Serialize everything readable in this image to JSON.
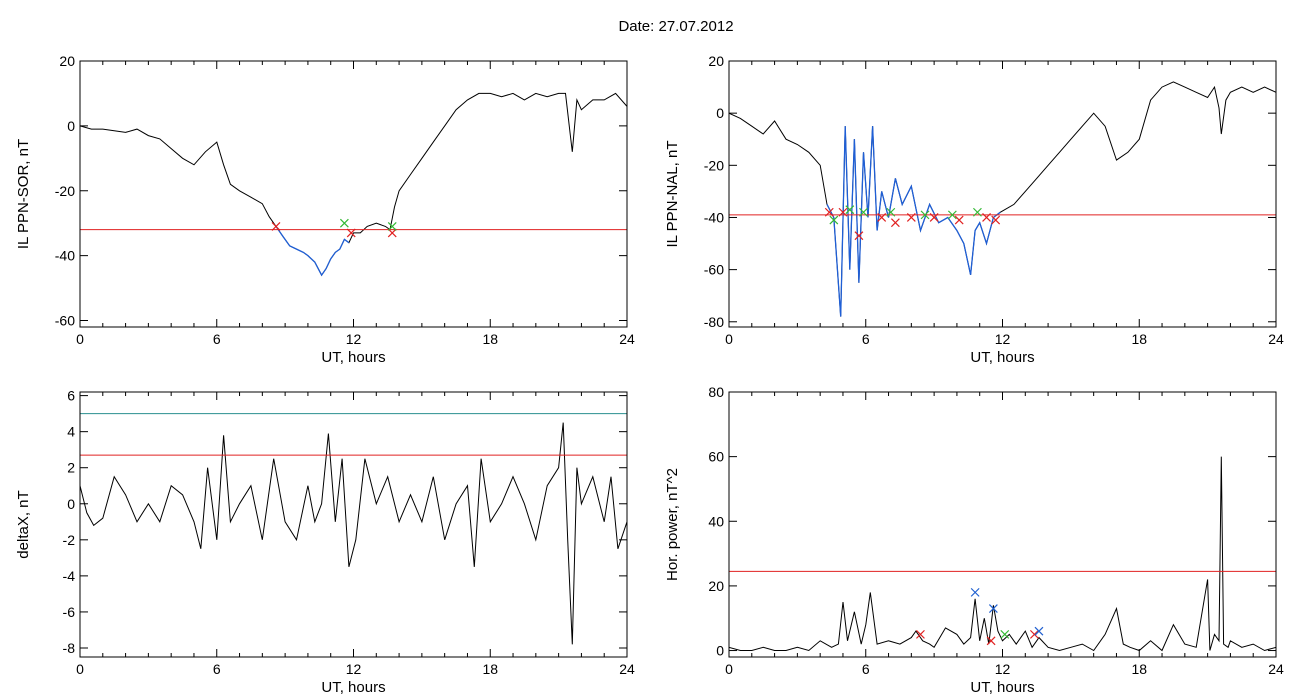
{
  "header": {
    "date_label": "Date:  27.07.2012"
  },
  "colors": {
    "axis": "#000000",
    "series": "#000000",
    "highlight": "#1f5fd6",
    "threshold": "#e02020",
    "threshold2": "#2a8f8f",
    "marker_red": "#e02020",
    "marker_green": "#33b833",
    "marker_blue": "#2060d0"
  },
  "chart_data": [
    {
      "id": "ppn-sor",
      "type": "line",
      "title": "",
      "xlabel": "UT, hours",
      "ylabel": "IL PPN-SOR, nT",
      "xlim": [
        0,
        24
      ],
      "ylim": [
        -62,
        20
      ],
      "xticks": [
        0,
        6,
        12,
        18,
        24
      ],
      "yticks": [
        -60,
        -40,
        -20,
        0,
        20
      ],
      "threshold": -32,
      "highlight_range": [
        8.6,
        11.9
      ],
      "series": [
        {
          "x": [
            0,
            0.5,
            1,
            1.5,
            2,
            2.5,
            3,
            3.5,
            4,
            4.5,
            5,
            5.5,
            6,
            6.3,
            6.6,
            7,
            7.5,
            8,
            8.3,
            8.6,
            8.9,
            9.2,
            9.5,
            9.8,
            10,
            10.3,
            10.6,
            10.8,
            11,
            11.2,
            11.4,
            11.6,
            11.8,
            12,
            12.3,
            12.6,
            13,
            13.4,
            13.6,
            13.8,
            14,
            14.5,
            15,
            15.5,
            16,
            16.5,
            17,
            17.5,
            18,
            18.5,
            19,
            19.5,
            20,
            20.5,
            21,
            21.3,
            21.5,
            21.6,
            21.8,
            22,
            22.5,
            23,
            23.5,
            24
          ],
          "y": [
            0,
            -1,
            -1,
            -1.5,
            -2,
            -1,
            -3,
            -4,
            -7,
            -10,
            -12,
            -8,
            -5,
            -12,
            -18,
            -20,
            -22,
            -24,
            -28,
            -31,
            -34,
            -37,
            -38,
            -39,
            -40,
            -42,
            -46,
            -44,
            -41,
            -39,
            -38,
            -35,
            -36,
            -33,
            -33,
            -31,
            -30,
            -31,
            -32,
            -25,
            -20,
            -15,
            -10,
            -5,
            0,
            5,
            8,
            10,
            10,
            9,
            10,
            8,
            10,
            9,
            10,
            10,
            -2,
            -8,
            8,
            5,
            8,
            8,
            10,
            6
          ]
        }
      ],
      "markers": [
        {
          "x": 8.6,
          "y": -31,
          "color": "red"
        },
        {
          "x": 11.6,
          "y": -30,
          "color": "green"
        },
        {
          "x": 11.9,
          "y": -33,
          "color": "red"
        },
        {
          "x": 13.7,
          "y": -33,
          "color": "red"
        },
        {
          "x": 13.7,
          "y": -31,
          "color": "green"
        }
      ]
    },
    {
      "id": "ppn-nal",
      "type": "line",
      "title": "",
      "xlabel": "UT, hours",
      "ylabel": "IL PPN-NAL, nT",
      "xlim": [
        0,
        24
      ],
      "ylim": [
        -82,
        20
      ],
      "xticks": [
        0,
        6,
        12,
        18,
        24
      ],
      "yticks": [
        -80,
        -60,
        -40,
        -20,
        0,
        20
      ],
      "threshold": -39,
      "highlight_range": [
        4.3,
        11.9
      ],
      "series": [
        {
          "x": [
            0,
            0.5,
            1,
            1.5,
            2,
            2.5,
            3,
            3.5,
            4,
            4.3,
            4.6,
            4.9,
            5.1,
            5.3,
            5.5,
            5.7,
            5.9,
            6.1,
            6.3,
            6.5,
            6.7,
            7,
            7.3,
            7.6,
            8,
            8.4,
            8.8,
            9.2,
            9.6,
            10,
            10.3,
            10.6,
            10.8,
            11,
            11.3,
            11.6,
            11.9,
            12.5,
            13,
            13.5,
            14,
            14.5,
            15,
            15.5,
            16,
            16.5,
            17,
            17.5,
            18,
            18.5,
            19,
            19.5,
            20,
            20.5,
            21,
            21.3,
            21.5,
            21.6,
            21.8,
            22,
            22.5,
            23,
            23.5,
            24
          ],
          "y": [
            0,
            -2,
            -5,
            -8,
            -3,
            -10,
            -12,
            -15,
            -20,
            -35,
            -40,
            -78,
            -5,
            -60,
            -10,
            -65,
            -15,
            -40,
            -5,
            -45,
            -30,
            -40,
            -25,
            -35,
            -28,
            -45,
            -35,
            -42,
            -40,
            -45,
            -50,
            -62,
            -45,
            -42,
            -50,
            -40,
            -38,
            -35,
            -30,
            -25,
            -20,
            -15,
            -10,
            -5,
            0,
            -5,
            -18,
            -15,
            -10,
            5,
            10,
            12,
            10,
            8,
            6,
            10,
            2,
            -8,
            5,
            8,
            10,
            8,
            10,
            8
          ]
        }
      ],
      "markers": [
        {
          "x": 4.4,
          "y": -38,
          "color": "red"
        },
        {
          "x": 4.6,
          "y": -41,
          "color": "green"
        },
        {
          "x": 5.0,
          "y": -38,
          "color": "red"
        },
        {
          "x": 5.3,
          "y": -37,
          "color": "green"
        },
        {
          "x": 5.7,
          "y": -47,
          "color": "red"
        },
        {
          "x": 5.9,
          "y": -38,
          "color": "green"
        },
        {
          "x": 6.7,
          "y": -40,
          "color": "red"
        },
        {
          "x": 7.1,
          "y": -38,
          "color": "green"
        },
        {
          "x": 7.3,
          "y": -42,
          "color": "red"
        },
        {
          "x": 8.0,
          "y": -40,
          "color": "red"
        },
        {
          "x": 8.6,
          "y": -39,
          "color": "green"
        },
        {
          "x": 9.0,
          "y": -40,
          "color": "red"
        },
        {
          "x": 9.8,
          "y": -39,
          "color": "green"
        },
        {
          "x": 10.1,
          "y": -41,
          "color": "red"
        },
        {
          "x": 10.9,
          "y": -38,
          "color": "green"
        },
        {
          "x": 11.3,
          "y": -40,
          "color": "red"
        },
        {
          "x": 11.7,
          "y": -41,
          "color": "red"
        }
      ]
    },
    {
      "id": "deltax",
      "type": "line",
      "title": "",
      "xlabel": "UT, hours",
      "ylabel": "deltaX, nT",
      "xlim": [
        0,
        24
      ],
      "ylim": [
        -8.5,
        6.2
      ],
      "xticks": [
        0,
        6,
        12,
        18,
        24
      ],
      "yticks": [
        -8,
        -6,
        -4,
        -2,
        0,
        2,
        4,
        6
      ],
      "threshold": 2.7,
      "threshold2": 5.0,
      "series": [
        {
          "x": [
            0,
            0.3,
            0.6,
            1,
            1.5,
            2,
            2.5,
            3,
            3.5,
            4,
            4.5,
            5,
            5.3,
            5.6,
            6,
            6.3,
            6.6,
            7,
            7.5,
            8,
            8.5,
            9,
            9.5,
            10,
            10.3,
            10.6,
            10.9,
            11.2,
            11.5,
            11.8,
            12.1,
            12.5,
            13,
            13.5,
            14,
            14.5,
            15,
            15.5,
            16,
            16.5,
            17,
            17.3,
            17.6,
            18,
            18.5,
            19,
            19.5,
            20,
            20.5,
            21,
            21.2,
            21.4,
            21.6,
            21.8,
            22,
            22.5,
            23,
            23.3,
            23.6,
            24
          ],
          "y": [
            1,
            -0.5,
            -1.2,
            -0.8,
            1.5,
            0.5,
            -1,
            0,
            -1,
            1,
            0.5,
            -1,
            -2.5,
            2,
            -2,
            3.8,
            -1,
            0,
            1,
            -2,
            2.5,
            -1,
            -2,
            1,
            -1,
            0,
            3.9,
            -1,
            2.5,
            -3.5,
            -2,
            2.5,
            0,
            1.5,
            -1,
            0.5,
            -1,
            1.5,
            -2,
            0,
            1,
            -3.5,
            2.5,
            -1,
            0,
            1.5,
            0,
            -2,
            1,
            2,
            4.5,
            -2,
            -7.8,
            2,
            0,
            1.5,
            -1,
            1.5,
            -2.5,
            -1
          ]
        }
      ],
      "markers": []
    },
    {
      "id": "hor-power",
      "type": "line",
      "title": "",
      "xlabel": "UT, hours",
      "ylabel": "Hor. power, nT^2",
      "xlim": [
        0,
        24
      ],
      "ylim": [
        -2,
        80
      ],
      "xticks": [
        0,
        6,
        12,
        18,
        24
      ],
      "yticks": [
        0,
        20,
        40,
        60,
        80
      ],
      "threshold": 24.5,
      "series": [
        {
          "x": [
            0,
            0.5,
            1,
            1.5,
            2,
            2.5,
            3,
            3.5,
            4,
            4.5,
            4.8,
            5,
            5.2,
            5.5,
            5.8,
            6,
            6.2,
            6.5,
            7,
            7.5,
            8,
            8.2,
            8.5,
            8.8,
            9,
            9.5,
            10,
            10.3,
            10.6,
            10.8,
            11,
            11.2,
            11.4,
            11.6,
            11.8,
            12,
            12.3,
            12.6,
            13,
            13.3,
            13.6,
            14,
            14.5,
            15,
            15.5,
            16,
            16.5,
            17,
            17.3,
            17.6,
            18,
            18.5,
            19,
            19.5,
            20,
            20.5,
            21,
            21.1,
            21.3,
            21.5,
            21.6,
            21.7,
            21.9,
            22,
            22.5,
            23,
            23.5,
            24
          ],
          "y": [
            1,
            0,
            0,
            1,
            0,
            0,
            1,
            0,
            3,
            1,
            2,
            15,
            3,
            12,
            2,
            8,
            18,
            2,
            3,
            2,
            4,
            6,
            3,
            2,
            1,
            7,
            5,
            2,
            4,
            16,
            3,
            10,
            2,
            14,
            6,
            3,
            5,
            2,
            6,
            1,
            4,
            1,
            0,
            1,
            2,
            0,
            5,
            13,
            2,
            1,
            0,
            3,
            0,
            8,
            2,
            1,
            22,
            0,
            5,
            3,
            60,
            2,
            1,
            3,
            1,
            2,
            0,
            1
          ]
        }
      ],
      "markers": [
        {
          "x": 8.4,
          "y": 5,
          "color": "red"
        },
        {
          "x": 10.8,
          "y": 18,
          "color": "blue"
        },
        {
          "x": 11.5,
          "y": 3,
          "color": "red"
        },
        {
          "x": 11.6,
          "y": 13,
          "color": "blue"
        },
        {
          "x": 12.1,
          "y": 5,
          "color": "green"
        },
        {
          "x": 13.4,
          "y": 5,
          "color": "red"
        },
        {
          "x": 13.6,
          "y": 6,
          "color": "blue"
        }
      ]
    }
  ]
}
